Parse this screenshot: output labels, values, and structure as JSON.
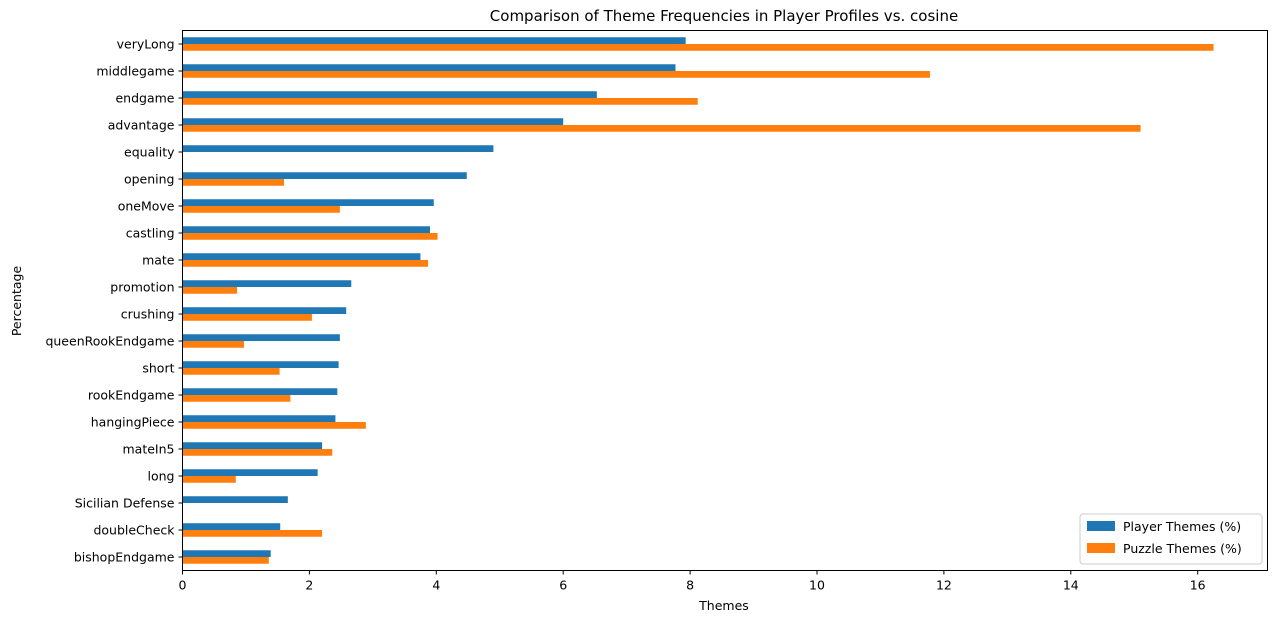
{
  "chart_data": {
    "type": "bar",
    "orientation": "horizontal",
    "title": "Comparison of Theme Frequencies in Player Profiles vs. cosine",
    "xlabel": "Themes",
    "ylabel": "Percentage",
    "xlim": [
      0,
      17.1
    ],
    "xticks": [
      0,
      2,
      4,
      6,
      8,
      10,
      12,
      14,
      16
    ],
    "grid": false,
    "legend_position": "lower-right",
    "categories": [
      "veryLong",
      "middlegame",
      "endgame",
      "advantage",
      "equality",
      "opening",
      "oneMove",
      "castling",
      "mate",
      "promotion",
      "crushing",
      "queenRookEndgame",
      "short",
      "rookEndgame",
      "hangingPiece",
      "mateIn5",
      "long",
      "Sicilian Defense",
      "doubleCheck",
      "bishopEndgame"
    ],
    "series": [
      {
        "name": "Player Themes (%)",
        "color": "#1f77b4",
        "values": [
          7.93,
          7.77,
          6.53,
          6.0,
          4.9,
          4.48,
          3.96,
          3.9,
          3.75,
          2.66,
          2.58,
          2.48,
          2.46,
          2.44,
          2.41,
          2.2,
          2.13,
          1.66,
          1.54,
          1.39
        ]
      },
      {
        "name": "Puzzle Themes (%)",
        "color": "#ff7f0e",
        "values": [
          16.25,
          11.78,
          8.12,
          15.1,
          0,
          1.6,
          2.48,
          4.02,
          3.87,
          0.86,
          2.04,
          0.97,
          1.53,
          1.7,
          2.89,
          2.36,
          0.84,
          0,
          2.2,
          1.36
        ]
      }
    ]
  }
}
